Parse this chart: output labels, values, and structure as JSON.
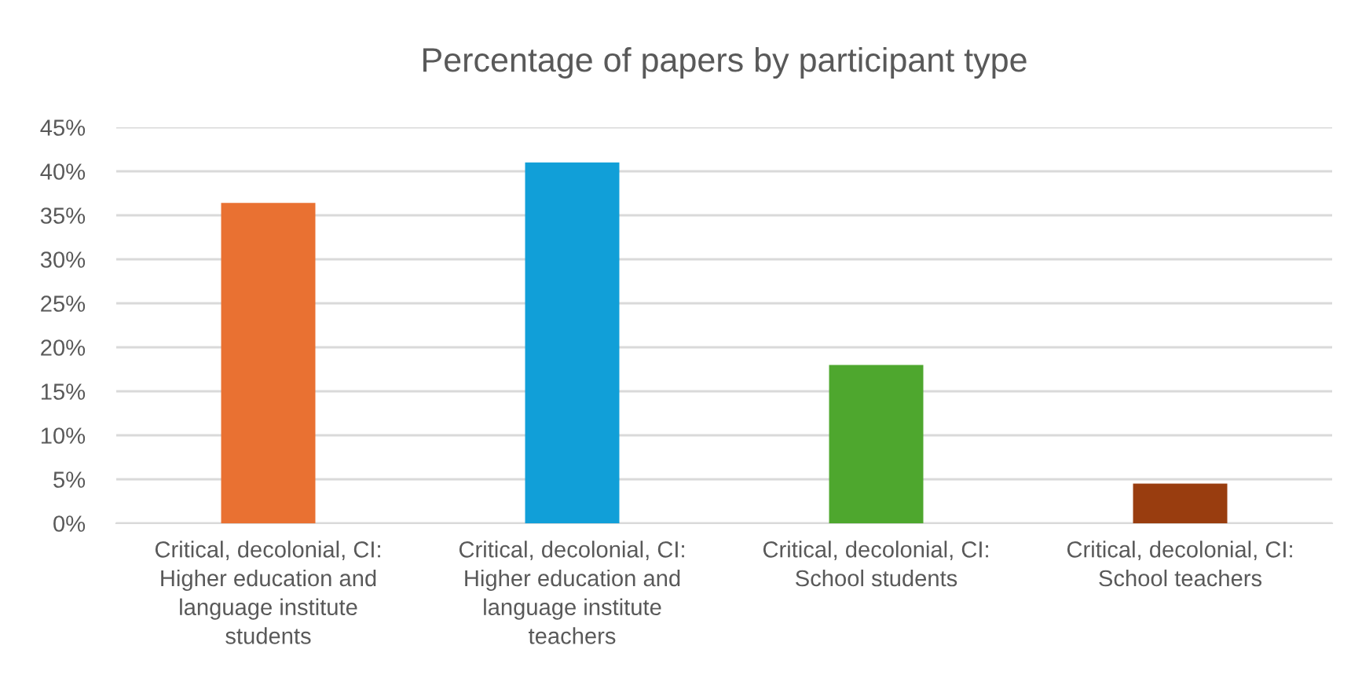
{
  "chart_data": {
    "type": "bar",
    "title": "Percentage of papers by participant type",
    "categories": [
      "Critical, decolonial, CI:\nHigher education and\nlanguage institute\nstudents",
      "Critical, decolonial, CI:\nHigher education and\nlanguage institute\nteachers",
      "Critical, decolonial, CI:\nSchool students",
      "Critical, decolonial, CI:\nSchool teachers"
    ],
    "values": [
      36.4,
      41.0,
      18.0,
      4.5
    ],
    "colors": [
      "#e97132",
      "#119fd8",
      "#4ea72e",
      "#993d0f"
    ],
    "ylim": [
      0,
      45
    ],
    "yticks": [
      {
        "value": 0,
        "label": "0%"
      },
      {
        "value": 5,
        "label": "5%"
      },
      {
        "value": 10,
        "label": "10%"
      },
      {
        "value": 15,
        "label": "15%"
      },
      {
        "value": 20,
        "label": "20%"
      },
      {
        "value": 25,
        "label": "25%"
      },
      {
        "value": 30,
        "label": "30%"
      },
      {
        "value": 35,
        "label": "35%"
      },
      {
        "value": 40,
        "label": "40%"
      },
      {
        "value": 45,
        "label": "45%"
      }
    ],
    "grid": "y",
    "legend": false
  }
}
